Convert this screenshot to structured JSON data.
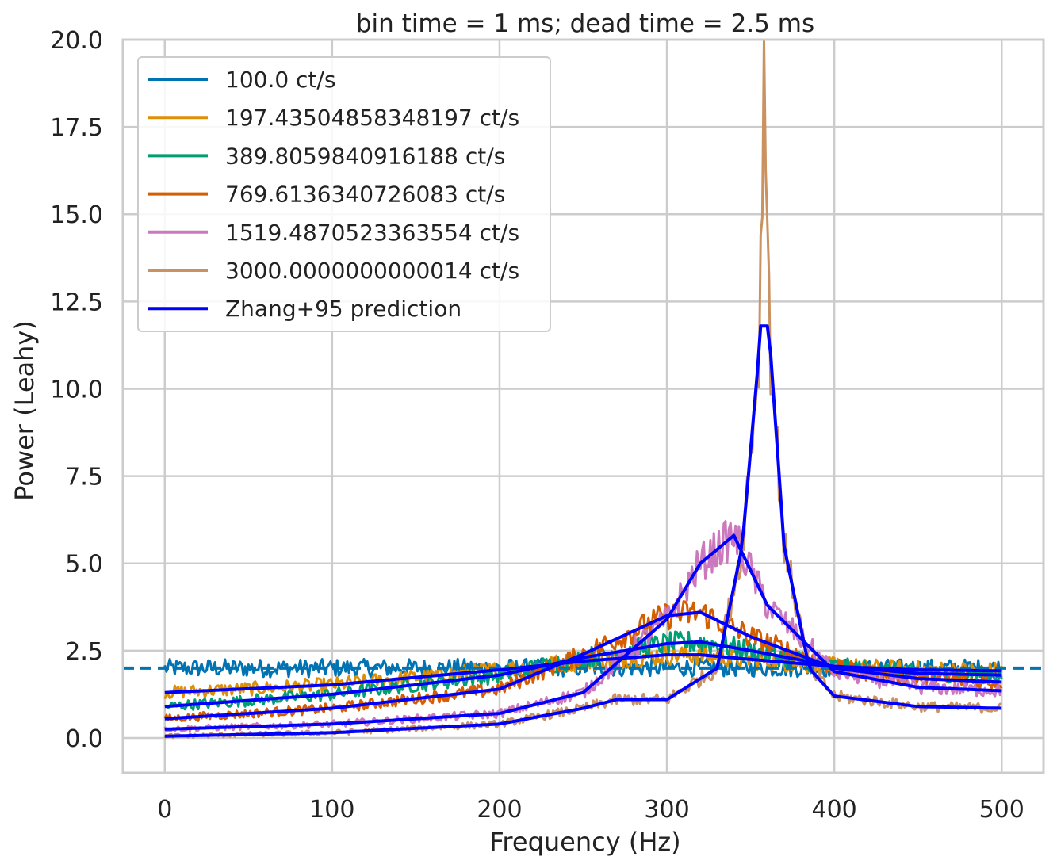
{
  "chart_data": {
    "type": "line",
    "title": "bin time = 1 ms; dead time = 2.5 ms",
    "xlabel": "Frequency (Hz)",
    "ylabel": "Power (Leahy)",
    "xlim": [
      -25,
      525
    ],
    "ylim": [
      -1.0,
      20.0
    ],
    "xticks": [
      0,
      100,
      200,
      300,
      400,
      500
    ],
    "xtick_labels": [
      "0",
      "100",
      "200",
      "300",
      "400",
      "500"
    ],
    "yticks": [
      0,
      2.5,
      5,
      7.5,
      10,
      12.5,
      15,
      17.5,
      20
    ],
    "ytick_labels": [
      "0.0",
      "2.5",
      "5.0",
      "7.5",
      "10.0",
      "12.5",
      "15.0",
      "17.5",
      "20.0"
    ],
    "grid": true,
    "legend_position": "top-left",
    "reference_line": {
      "y": 2.0,
      "style": "dashed",
      "color": "#0173b2"
    },
    "series": [
      {
        "name": "100.0 ct/s",
        "color": "#0173b2",
        "x": [
          0,
          100,
          200,
          250,
          300,
          320,
          350,
          400,
          450,
          500
        ],
        "y": [
          2.0,
          2.0,
          2.01,
          2.01,
          2.02,
          2.02,
          2.01,
          2.0,
          2.0,
          2.0
        ]
      },
      {
        "name": "197.43504858348197 ct/s",
        "color": "#de8f05",
        "x": [
          0,
          100,
          200,
          250,
          300,
          320,
          350,
          400,
          450,
          500
        ],
        "y": [
          1.3,
          1.52,
          1.95,
          2.2,
          2.38,
          2.38,
          2.25,
          2.05,
          1.95,
          1.92
        ]
      },
      {
        "name": "389.8059840916188 ct/s",
        "color": "#029e73",
        "x": [
          0,
          100,
          200,
          250,
          300,
          320,
          350,
          400,
          450,
          500
        ],
        "y": [
          0.9,
          1.25,
          1.8,
          2.3,
          2.7,
          2.75,
          2.5,
          2.05,
          1.85,
          1.8
        ]
      },
      {
        "name": "769.6136340726083 ct/s",
        "color": "#d55e00",
        "x": [
          0,
          100,
          200,
          250,
          300,
          320,
          350,
          400,
          450,
          500
        ],
        "y": [
          0.55,
          0.85,
          1.4,
          2.4,
          3.5,
          3.6,
          2.9,
          2.0,
          1.7,
          1.6
        ]
      },
      {
        "name": "1519.4870523363554 ct/s",
        "color": "#cc78bc",
        "x": [
          0,
          100,
          200,
          250,
          300,
          320,
          340,
          360,
          400,
          450,
          500
        ],
        "y": [
          0.25,
          0.4,
          0.7,
          1.3,
          3.4,
          5.0,
          5.8,
          3.8,
          1.9,
          1.45,
          1.35
        ]
      },
      {
        "name": "3000.0000000000014 ct/s",
        "color": "#ca9161",
        "x": [
          0,
          100,
          200,
          250,
          270,
          300,
          330,
          345,
          355,
          358,
          362,
          370,
          385,
          400,
          450,
          500
        ],
        "y": [
          0.05,
          0.15,
          0.4,
          0.85,
          1.1,
          1.1,
          2.0,
          5.5,
          11.0,
          19.1,
          11.0,
          5.5,
          2.0,
          1.2,
          0.9,
          0.85
        ]
      },
      {
        "name": "Zhang+95 prediction",
        "color": "#0000ff",
        "x": [
          0,
          100,
          200,
          300,
          400,
          500
        ],
        "y": [
          1.3,
          1.52,
          1.95,
          2.35,
          2.05,
          1.92
        ]
      }
    ]
  }
}
